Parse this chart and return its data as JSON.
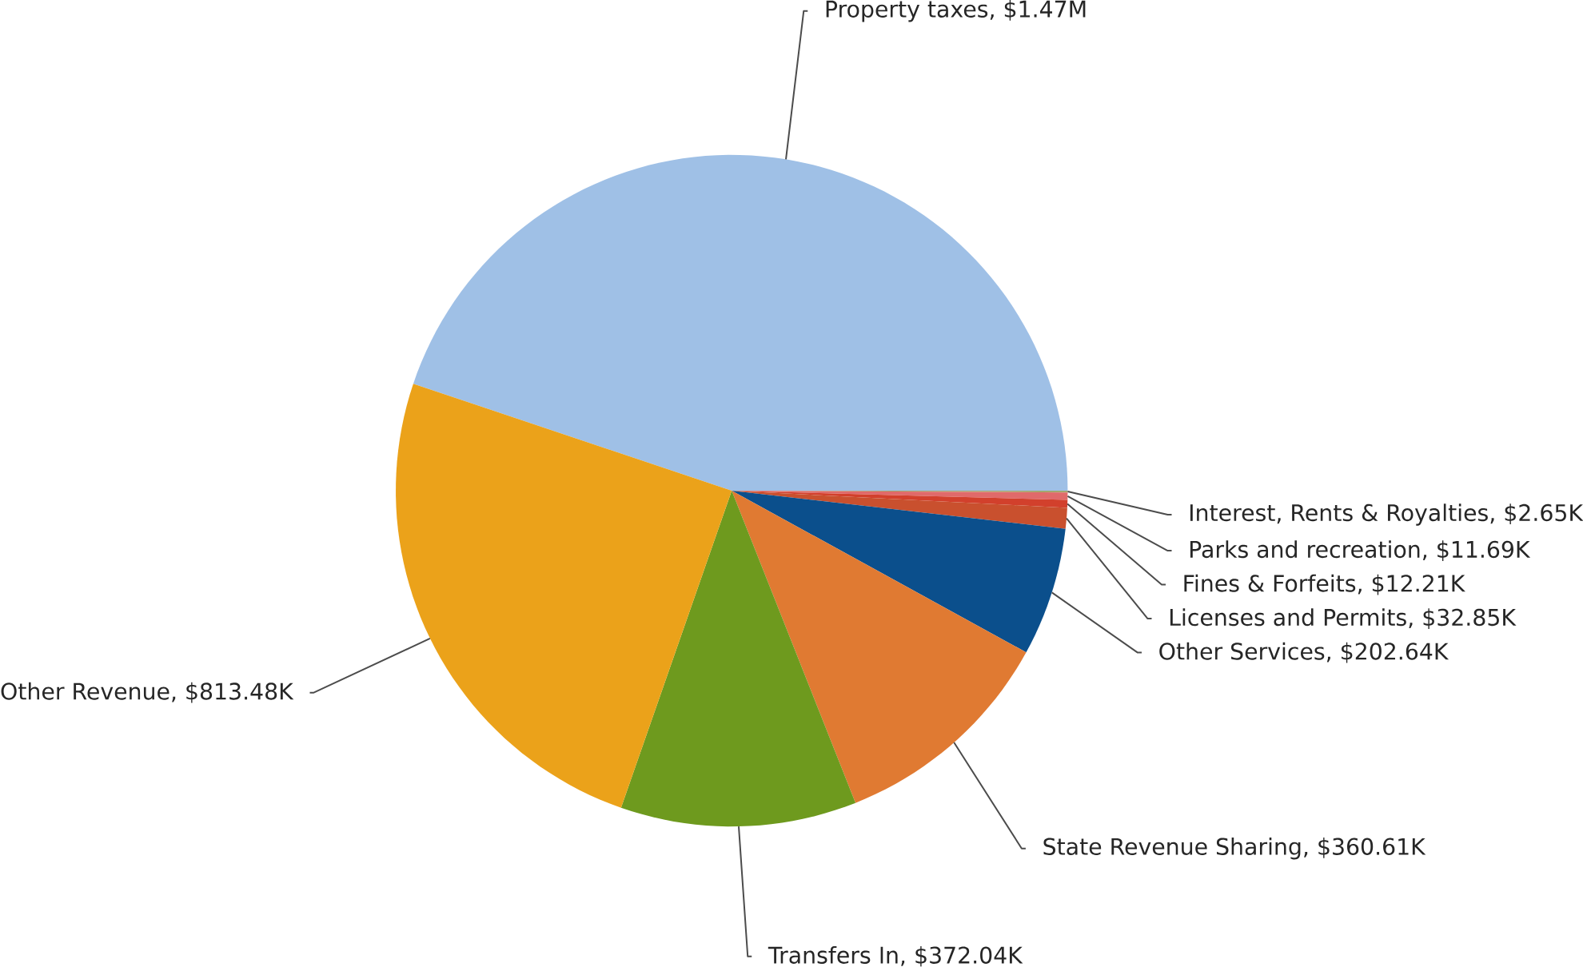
{
  "chart_data": {
    "type": "pie",
    "categories": [
      "Property taxes, $1.47M",
      "Interest, Rents & Royalties, $2.65K",
      "Parks and recreation, $11.69K",
      "Fines & Forfeits, $12.21K",
      "Licenses and Permits, $32.85K",
      "Other Services, $202.64K",
      "State Revenue Sharing, $360.61K",
      "Transfers In, $372.04K",
      "Other Revenue, $813.48K"
    ],
    "values": [
      1470000,
      2650,
      11690,
      12210,
      32850,
      202640,
      360610,
      372040,
      813480
    ],
    "colors": [
      "#9fc0e6",
      "#a3a86e",
      "#e06a6a",
      "#d2402c",
      "#c9502e",
      "#0b4f8c",
      "#e07a32",
      "#6e9a1e",
      "#eba21a"
    ]
  }
}
